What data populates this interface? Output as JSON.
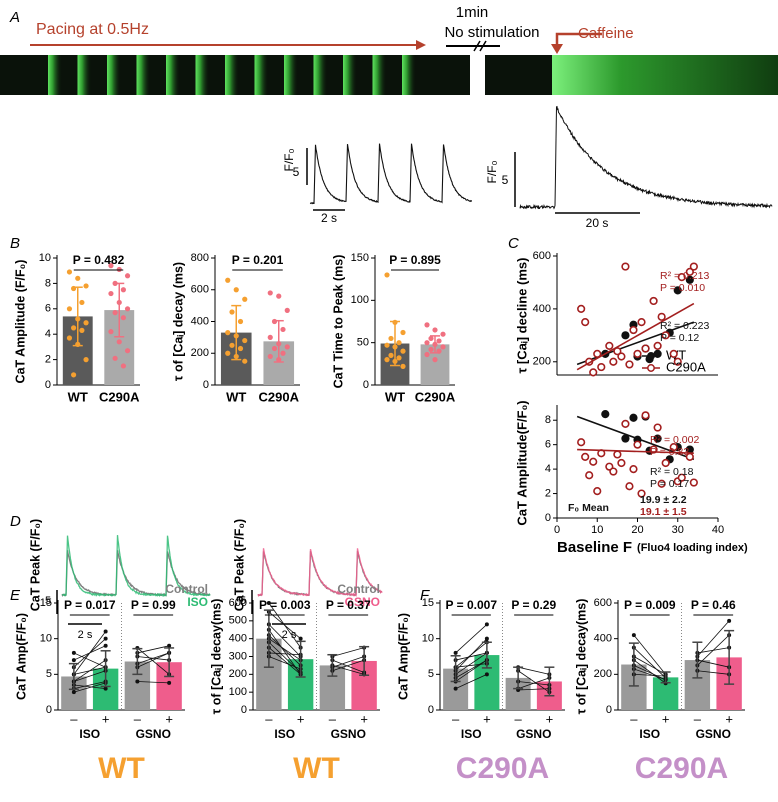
{
  "panel_labels": [
    "A",
    "B",
    "C",
    "D",
    "E",
    "F"
  ],
  "panel_a": {
    "pacing": "Pacing at 0.5Hz",
    "pause": "1min",
    "pause_note": "No stimulation",
    "drug": "Caffeine",
    "trace_pacing": {
      "ylabel": "F/F₀",
      "scale_y": "5",
      "scale_x": "2 s"
    },
    "trace_caffeine": {
      "ylabel": "F/F₀",
      "scale_y": "5",
      "scale_x": "20 s"
    }
  },
  "panel_d": [
    {
      "ylabel": "CaT Peak (F/F₀)",
      "scale_y": "5",
      "scale_x": "2 s",
      "legend": [
        {
          "name": "Control",
          "color": "#808080"
        },
        {
          "name": "ISO",
          "color": "#2dbb73"
        }
      ]
    },
    {
      "ylabel": "CaT Peak (F/F₀)",
      "scale_y": "5",
      "scale_x": "2 s",
      "legend": [
        {
          "name": "Control",
          "color": "#808080"
        },
        {
          "name": "GSNO",
          "color": "#ef5d8c"
        }
      ]
    }
  ],
  "chart_data": [
    {
      "type": "bar",
      "ylabel": "CaT Amplitude (F/F₀)",
      "categories": [
        "WT",
        "C290A"
      ],
      "values": [
        5.4,
        5.9
      ],
      "errors": [
        2.3,
        2.1
      ],
      "colors": [
        "#5a5a5a",
        "#aaaaaa"
      ],
      "point_colors": [
        "#f5a030",
        "#f07080"
      ],
      "error_colors": [
        "#f5a030",
        "#f07080"
      ],
      "points": [
        [
          8.9,
          8.4,
          7.8,
          7.6,
          6.5,
          6,
          5.2,
          4.9,
          4.5,
          4.3,
          3.7,
          3.2,
          2,
          0.8
        ],
        [
          9.4,
          9.1,
          8.6,
          8,
          7.5,
          7.2,
          6.5,
          6,
          5.7,
          5.3,
          4.2,
          3.4,
          2.7,
          2.1,
          1.5
        ]
      ],
      "ylim": [
        0,
        10
      ],
      "yticks": [
        0,
        2,
        4,
        6,
        8,
        10
      ],
      "annotations": [
        "P = 0.482"
      ]
    },
    {
      "type": "bar",
      "ylabel": "τ of [Caᵢ] decay (ms)",
      "categories": [
        "WT",
        "C290A"
      ],
      "values": [
        330,
        275
      ],
      "errors": [
        170,
        130
      ],
      "colors": [
        "#5a5a5a",
        "#aaaaaa"
      ],
      "point_colors": [
        "#f5a030",
        "#f07080"
      ],
      "error_colors": [
        "#f5a030",
        "#f07080"
      ],
      "points": [
        [
          660,
          600,
          540,
          460,
          400,
          330,
          310,
          280,
          250,
          230,
          200,
          180,
          150
        ],
        [
          580,
          560,
          470,
          400,
          350,
          300,
          260,
          240,
          230,
          200,
          180,
          160
        ]
      ],
      "ylim": [
        0,
        800
      ],
      "yticks": [
        0,
        200,
        400,
        600,
        800
      ],
      "annotations": [
        "P = 0.201"
      ]
    },
    {
      "type": "bar",
      "ylabel": "CaT Time to Peak (ms)",
      "categories": [
        "WT",
        "C290A"
      ],
      "values": [
        49,
        48
      ],
      "errors": [
        26,
        10
      ],
      "colors": [
        "#5a5a5a",
        "#aaaaaa"
      ],
      "point_colors": [
        "#f5a030",
        "#f07080"
      ],
      "error_colors": [
        "#f5a030",
        "#f07080"
      ],
      "points": [
        [
          130,
          74,
          62,
          55,
          50,
          47,
          45,
          40,
          35,
          32,
          30,
          28,
          22
        ],
        [
          71,
          65,
          60,
          55,
          52,
          50,
          48,
          45,
          42,
          40,
          36,
          30
        ]
      ],
      "ylim": [
        0,
        150
      ],
      "yticks": [
        0,
        50,
        100,
        150
      ],
      "annotations": [
        "P = 0.895"
      ]
    },
    {
      "type": "scatter",
      "ylabel": "τ [Caᵢ] decline (ms)",
      "xlim": [
        0,
        40
      ],
      "ylim": [
        150,
        600
      ],
      "yticks": [
        200,
        400,
        600
      ],
      "legend": true,
      "series": [
        {
          "name": "WT",
          "color": "#111111",
          "marker": "filled",
          "x": [
            12,
            17,
            19,
            20,
            22,
            23,
            25,
            28,
            30,
            33
          ],
          "values": [
            230,
            300,
            340,
            220,
            250,
            210,
            230,
            310,
            470,
            510
          ],
          "fit": {
            "x": [
              5,
              34
            ],
            "y": [
              190,
              350
            ]
          }
        },
        {
          "name": "C290A",
          "color": "#a31f1f",
          "marker": "open",
          "x": [
            6,
            7,
            8,
            9,
            10,
            11,
            13,
            14,
            15,
            16,
            17,
            18,
            19,
            20,
            21,
            22,
            24,
            25,
            26,
            27,
            29,
            30,
            31,
            33,
            34
          ],
          "values": [
            400,
            350,
            200,
            160,
            230,
            180,
            260,
            200,
            240,
            220,
            560,
            190,
            320,
            230,
            350,
            250,
            430,
            260,
            370,
            300,
            230,
            200,
            520,
            540,
            560
          ],
          "fit": {
            "x": [
              5,
              34
            ],
            "y": [
              170,
              420
            ]
          }
        }
      ],
      "annotations": [
        {
          "text": "R² = 0.213",
          "color": "#a31f1f"
        },
        {
          "text": "P = 0.010",
          "color": "#a31f1f"
        },
        {
          "text": "R² = 0.223",
          "color": "#111111"
        },
        {
          "text": "P = 0.12",
          "color": "#111111"
        }
      ]
    },
    {
      "type": "scatter",
      "ylabel": "CaT Amplitude(F/F₀)",
      "xlabel": "Baseline F",
      "xlabel_note": "(Fluo4 loading index)",
      "xlim": [
        0,
        40
      ],
      "xticks": [
        0,
        10,
        20,
        30,
        40
      ],
      "ylim": [
        0,
        9
      ],
      "yticks": [
        0,
        2,
        4,
        6,
        8
      ],
      "legend": false,
      "series": [
        {
          "name": "WT",
          "color": "#111111",
          "marker": "filled",
          "x": [
            12,
            17,
            19,
            20,
            22,
            23,
            25,
            28,
            30,
            33
          ],
          "values": [
            8.5,
            6.5,
            8.2,
            6.4,
            8.3,
            5.5,
            6.5,
            4.8,
            5.8,
            5.6
          ],
          "fit": {
            "x": [
              5,
              34
            ],
            "y": [
              8.3,
              4.8
            ]
          }
        },
        {
          "name": "C290A",
          "color": "#a31f1f",
          "marker": "open",
          "x": [
            6,
            7,
            8,
            9,
            10,
            11,
            13,
            14,
            15,
            16,
            17,
            18,
            19,
            20,
            21,
            22,
            24,
            25,
            26,
            27,
            29,
            30,
            31,
            33,
            34
          ],
          "values": [
            6.2,
            5,
            3.5,
            4.6,
            2.2,
            5.3,
            4.2,
            3.8,
            5.2,
            4.5,
            7.7,
            2.6,
            4,
            6,
            2,
            8.4,
            5.6,
            7.4,
            2.8,
            4.5,
            5.8,
            3,
            3.3,
            5,
            2.9
          ],
          "fit": {
            "x": [
              5,
              34
            ],
            "y": [
              5.6,
              5.3
            ]
          }
        }
      ],
      "annotations": [
        {
          "text": "R² = 0.002",
          "color": "#a31f1f"
        },
        {
          "text": "P = 0.83",
          "color": "#a31f1f"
        },
        {
          "text": "R² = 0.18",
          "color": "#111111"
        },
        {
          "text": "P = 0.17",
          "color": "#111111"
        },
        {
          "text": "F₀ Mean",
          "color": "#111111"
        },
        {
          "text": "19.9 ± 2.2",
          "color": "#111111"
        },
        {
          "text": "19.1 ± 1.5",
          "color": "#a31f1f"
        }
      ]
    },
    {
      "type": "bar",
      "ylabel": "CaT Amp(F/F₀)",
      "categories": [
        "–",
        "+",
        "–",
        "+"
      ],
      "groups": [
        "ISO",
        "GSNO"
      ],
      "footer": "WT",
      "footer_color": "#f5a030",
      "values": [
        4.7,
        5.8,
        6.8,
        6.7
      ],
      "errors": [
        1.8,
        2.5,
        1.8,
        2.0
      ],
      "colors": [
        "#9a9a9a",
        "#2dbb73",
        "#9a9a9a",
        "#ef5d8c"
      ],
      "error_colors": [
        "#444444",
        "#444444",
        "#444444",
        "#444444"
      ],
      "pairs": [
        [
          [
            3,
            4
          ],
          [
            4,
            7
          ],
          [
            5,
            11
          ],
          [
            6,
            10
          ],
          [
            4,
            5.5
          ],
          [
            7,
            9
          ],
          [
            8,
            6
          ],
          [
            3.5,
            3
          ],
          [
            2.5,
            3.8
          ],
          [
            5,
            6
          ]
        ],
        [
          [
            8,
            9
          ],
          [
            7.5,
            7
          ],
          [
            6.5,
            8
          ],
          [
            4,
            3.8
          ],
          [
            8.7,
            5
          ],
          [
            6,
            8
          ]
        ]
      ],
      "ylim": [
        0,
        15
      ],
      "yticks": [
        0,
        5,
        10,
        15
      ],
      "annotations": [
        "P = 0.017",
        "P = 0.99"
      ]
    },
    {
      "type": "bar",
      "ylabel": "τ of [Caᵢ] decay(ms)",
      "categories": [
        "–",
        "+",
        "–",
        "+"
      ],
      "groups": [
        "ISO",
        "GSNO"
      ],
      "footer": "WT",
      "footer_color": "#f5a030",
      "values": [
        400,
        285,
        250,
        275
      ],
      "errors": [
        160,
        100,
        60,
        80
      ],
      "colors": [
        "#9a9a9a",
        "#2dbb73",
        "#9a9a9a",
        "#ef5d8c"
      ],
      "error_colors": [
        "#444444",
        "#444444",
        "#444444",
        "#444444"
      ],
      "pairs": [
        [
          [
            550,
            400
          ],
          [
            480,
            300
          ],
          [
            420,
            250
          ],
          [
            400,
            280
          ],
          [
            350,
            200
          ],
          [
            320,
            310
          ],
          [
            450,
            200
          ],
          [
            600,
            350
          ],
          [
            380,
            210
          ],
          [
            300,
            230
          ]
        ],
        [
          [
            250,
            200
          ],
          [
            300,
            350
          ],
          [
            220,
            280
          ],
          [
            280,
            210
          ],
          [
            240,
            300
          ]
        ]
      ],
      "ylim": [
        0,
        600
      ],
      "yticks": [
        0,
        100,
        200,
        300,
        400,
        500,
        600
      ],
      "annotations": [
        "P = 0.003",
        "P = 0.37"
      ]
    },
    {
      "type": "bar",
      "ylabel": "CaT Amp(F/F₀)",
      "categories": [
        "–",
        "+",
        "–",
        "+"
      ],
      "groups": [
        "ISO",
        "GSNO"
      ],
      "footer": "C290A",
      "footer_color": "#c490c8",
      "values": [
        5.8,
        7.7,
        4.5,
        4.0
      ],
      "errors": [
        1.8,
        1.8,
        1.5,
        2.0
      ],
      "colors": [
        "#9a9a9a",
        "#2dbb73",
        "#9a9a9a",
        "#ef5d8c"
      ],
      "error_colors": [
        "#444444",
        "#444444",
        "#444444",
        "#444444"
      ],
      "pairs": [
        [
          [
            4,
            7
          ],
          [
            5,
            8
          ],
          [
            6,
            9.5
          ],
          [
            5.5,
            10
          ],
          [
            7,
            8
          ],
          [
            3,
            5
          ],
          [
            8,
            12
          ],
          [
            6,
            6.5
          ],
          [
            4.5,
            7
          ]
        ],
        [
          [
            6,
            5
          ],
          [
            5.5,
            2.5
          ],
          [
            4,
            3.5
          ],
          [
            3,
            4.5
          ],
          [
            2.8,
            3
          ]
        ]
      ],
      "ylim": [
        0,
        15
      ],
      "yticks": [
        0,
        5,
        10,
        15
      ],
      "annotations": [
        "P = 0.007",
        "P = 0.29"
      ]
    },
    {
      "type": "bar",
      "ylabel": "τ of [Caᵢ] decay(ms)",
      "categories": [
        "–",
        "+",
        "–",
        "+"
      ],
      "groups": [
        "ISO",
        "GSNO"
      ],
      "footer": "C290A",
      "footer_color": "#c490c8",
      "values": [
        255,
        183,
        280,
        295
      ],
      "errors": [
        120,
        30,
        100,
        150
      ],
      "colors": [
        "#9a9a9a",
        "#2dbb73",
        "#9a9a9a",
        "#ef5d8c"
      ],
      "error_colors": [
        "#444444",
        "#444444",
        "#444444",
        "#444444"
      ],
      "pairs": [
        [
          [
            420,
            200
          ],
          [
            350,
            180
          ],
          [
            300,
            200
          ],
          [
            250,
            170
          ],
          [
            200,
            190
          ],
          [
            280,
            150
          ],
          [
            230,
            170
          ]
        ],
        [
          [
            300,
            500
          ],
          [
            250,
            420
          ],
          [
            320,
            350
          ],
          [
            220,
            200
          ],
          [
            280,
            240
          ]
        ]
      ],
      "ylim": [
        0,
        600
      ],
      "yticks": [
        0,
        200,
        400,
        600
      ],
      "annotations": [
        "P = 0.009",
        "P = 0.46"
      ]
    }
  ]
}
